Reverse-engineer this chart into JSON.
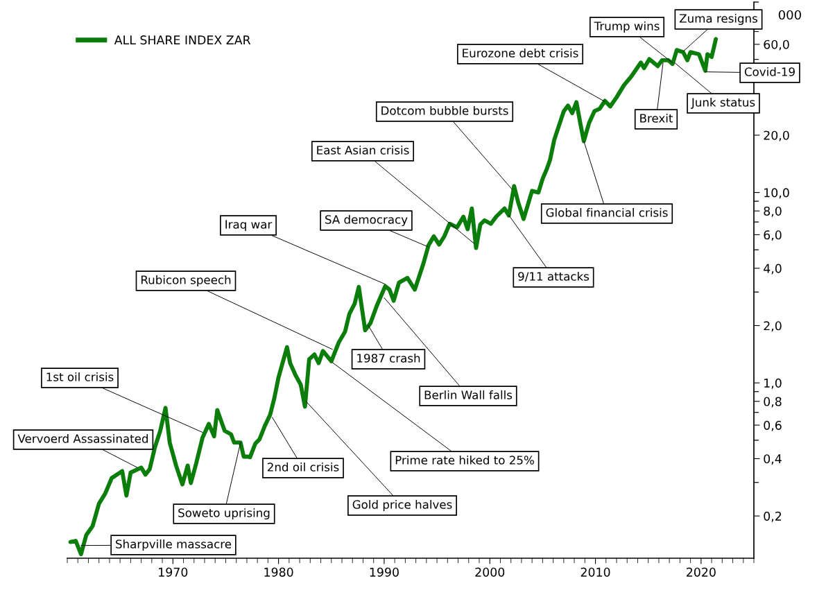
{
  "chart_data": {
    "type": "line",
    "ylabel": "000",
    "log": "y",
    "legend": "top left",
    "xlim": [
      1960,
      2025
    ],
    "xticks": [
      1970,
      1980,
      1990,
      2000,
      2010,
      2020
    ],
    "ylim": [
      0.12,
      100
    ],
    "yticks": [
      {
        "value": 0.2,
        "label": "0,2"
      },
      {
        "value": 0.4,
        "label": "0,4"
      },
      {
        "value": 0.6,
        "label": "0,6"
      },
      {
        "value": 0.8,
        "label": "0,8"
      },
      {
        "value": 1,
        "label": "1,0"
      },
      {
        "value": 2,
        "label": "2,0"
      },
      {
        "value": 4,
        "label": "4,0"
      },
      {
        "value": 6,
        "label": "6,0"
      },
      {
        "value": 8,
        "label": "8,0"
      },
      {
        "value": 10,
        "label": "10,0"
      },
      {
        "value": 20,
        "label": "20,0"
      },
      {
        "value": 40,
        "label": null
      },
      {
        "value": 60,
        "label": "60,0"
      }
    ],
    "series": [
      {
        "name": "ALL SHARE INDEX ZAR",
        "color": "#0a7d0a",
        "x": [
          1960.3,
          1960.8,
          1961.3,
          1961.8,
          1962.4,
          1963.0,
          1963.6,
          1964.2,
          1965.2,
          1965.6,
          1966.0,
          1967.0,
          1967.4,
          1967.8,
          1968.3,
          1968.8,
          1969.3,
          1969.7,
          1970.3,
          1970.9,
          1971.4,
          1971.7,
          1972.2,
          1972.8,
          1973.4,
          1973.9,
          1974.2,
          1974.5,
          1974.9,
          1975.5,
          1975.8,
          1976.4,
          1976.7,
          1977.1,
          1977.3,
          1977.8,
          1978.2,
          1978.7,
          1979.2,
          1979.6,
          1980.0,
          1980.8,
          1981.1,
          1981.6,
          1982.1,
          1982.5,
          1982.9,
          1983.4,
          1983.8,
          1984.2,
          1985.0,
          1985.7,
          1986.3,
          1986.7,
          1987.2,
          1987.6,
          1988.2,
          1988.7,
          1989.3,
          1990.1,
          1990.5,
          1990.9,
          1991.4,
          1992.2,
          1992.9,
          1993.7,
          1994.2,
          1994.7,
          1995.2,
          1995.7,
          1996.2,
          1996.9,
          1997.5,
          1997.9,
          1998.3,
          1998.7,
          1999.1,
          1999.5,
          2000.1,
          2000.6,
          2001.4,
          2001.8,
          2002.3,
          2002.7,
          2003.2,
          2004.0,
          2004.6,
          2005.0,
          2005.4,
          2005.7,
          2006.1,
          2007.0,
          2007.4,
          2007.8,
          2008.2,
          2008.6,
          2008.9,
          2009.4,
          2009.9,
          2010.4,
          2010.9,
          2011.4,
          2012.0,
          2012.7,
          2013.4,
          2014.3,
          2014.6,
          2015.1,
          2015.9,
          2016.3,
          2016.9,
          2017.3,
          2017.7,
          2018.3,
          2018.7,
          2019.0,
          2019.8,
          2020.4,
          2020.6,
          2021.0,
          2021.4
        ],
        "values": [
          0.146,
          0.148,
          0.126,
          0.159,
          0.177,
          0.232,
          0.263,
          0.316,
          0.344,
          0.256,
          0.338,
          0.359,
          0.33,
          0.352,
          0.46,
          0.56,
          0.739,
          0.486,
          0.368,
          0.293,
          0.368,
          0.298,
          0.377,
          0.515,
          0.609,
          0.524,
          0.72,
          0.646,
          0.56,
          0.537,
          0.486,
          0.486,
          0.41,
          0.41,
          0.407,
          0.48,
          0.506,
          0.594,
          0.679,
          0.831,
          1.07,
          1.54,
          1.27,
          1.1,
          0.98,
          0.75,
          1.33,
          1.41,
          1.27,
          1.47,
          1.3,
          1.63,
          1.86,
          2.3,
          2.6,
          3.19,
          1.89,
          2.06,
          2.54,
          3.22,
          3.09,
          2.7,
          3.36,
          3.56,
          3.09,
          4.21,
          5.28,
          5.89,
          5.33,
          5.89,
          6.85,
          6.56,
          7.46,
          6.41,
          8.24,
          5.11,
          6.79,
          7.14,
          6.85,
          7.46,
          8.24,
          7.57,
          10.8,
          8.83,
          7.26,
          10.2,
          10.0,
          11.8,
          13.3,
          14.8,
          18.9,
          26.7,
          28.6,
          26.1,
          29.8,
          22.6,
          18.6,
          23.2,
          26.7,
          27.5,
          30.3,
          28.3,
          31.6,
          36.6,
          40.7,
          48.1,
          45.0,
          50.2,
          46.1,
          49.5,
          49.5,
          47.3,
          56.0,
          54.6,
          49.5,
          54.6,
          53.2,
          43.6,
          53.2,
          51.5,
          63.9
        ]
      }
    ],
    "annotations": [
      {
        "text": "Sharpville massacre",
        "x": 1961.3,
        "y": 0.14
      },
      {
        "text": "Vervoerd Assassinated",
        "x": 1966.6,
        "y": 0.36
      },
      {
        "text": "1st oil crisis",
        "x": 1972.8,
        "y": 0.55
      },
      {
        "text": "Soweto uprising",
        "x": 1976.4,
        "y": 0.486
      },
      {
        "text": "2nd oil crisis",
        "x": 1979.4,
        "y": 0.66
      },
      {
        "text": "Gold price halves",
        "x": 1982.6,
        "y": 0.8
      },
      {
        "text": "Prime rate hiked to 25%",
        "x": 1985.1,
        "y": 1.28
      },
      {
        "text": "Rubicon speech",
        "x": 1985.1,
        "y": 1.5
      },
      {
        "text": "1987 crash",
        "x": 1988.5,
        "y": 2.0
      },
      {
        "text": "Berlin Wall falls",
        "x": 1990.0,
        "y": 2.8
      },
      {
        "text": "Iraq war",
        "x": 1990.1,
        "y": 3.3
      },
      {
        "text": "SA democracy",
        "x": 1994.1,
        "y": 5.2
      },
      {
        "text": "East Asian crisis",
        "x": 1998.5,
        "y": 5.4
      },
      {
        "text": "Dotcom bubble bursts",
        "x": 2002.1,
        "y": 10.4
      },
      {
        "text": "9/11 attacks",
        "x": 2001.8,
        "y": 7.6
      },
      {
        "text": "Global financial crisis",
        "x": 2008.9,
        "y": 18.6
      },
      {
        "text": "Eurozone debt crisis",
        "x": 2010.9,
        "y": 30
      },
      {
        "text": "Brexit",
        "x": 2016.4,
        "y": 48
      },
      {
        "text": "Trump wins",
        "x": 2017.3,
        "y": 48
      },
      {
        "text": "Junk status",
        "x": 2017.5,
        "y": 48
      },
      {
        "text": "Zuma resigns",
        "x": 2018.3,
        "y": 55
      },
      {
        "text": "Covid-19",
        "x": 2020.4,
        "y": 43
      }
    ]
  }
}
